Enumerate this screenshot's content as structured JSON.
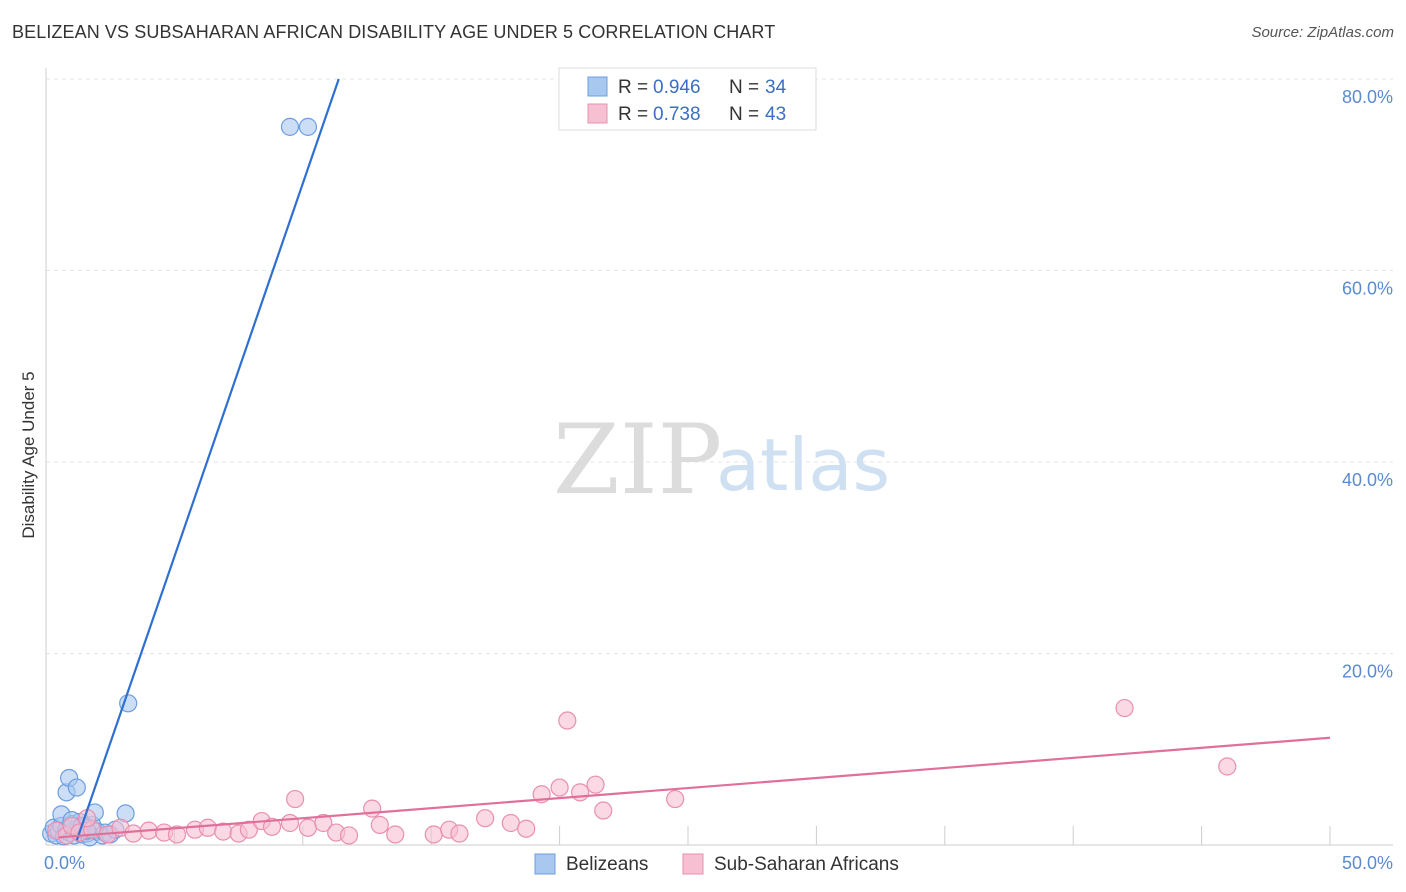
{
  "title": "BELIZEAN VS SUBSAHARAN AFRICAN DISABILITY AGE UNDER 5 CORRELATION CHART",
  "source": "Source: ZipAtlas.com",
  "watermark": {
    "zip": "ZIP",
    "atlas": "atlas"
  },
  "legend": {
    "r_label": "R =",
    "n_label": "N =",
    "rows": [
      {
        "r": "0.946",
        "n": "34",
        "color": "#a9c8f0",
        "stroke": "#6c9ee0"
      },
      {
        "r": "0.738",
        "n": "43",
        "color": "#f7bfd2",
        "stroke": "#e98fb0"
      }
    ]
  },
  "bottom_legend": [
    "Belizeans",
    "Sub-Saharan Africans"
  ],
  "chart_data": {
    "type": "scatter",
    "title": "BELIZEAN VS SUBSAHARAN AFRICAN DISABILITY AGE UNDER 5 CORRELATION CHART",
    "xlabel": "",
    "ylabel": "Disability Age Under 5",
    "xlim": [
      0,
      50
    ],
    "ylim": [
      0,
      80
    ],
    "x_tick_labels": [
      "0.0%",
      "50.0%"
    ],
    "y_ticks": [
      20,
      40,
      60,
      80
    ],
    "y_tick_labels": [
      "20.0%",
      "40.0%",
      "60.0%",
      "80.0%"
    ],
    "grid": true,
    "legend_position": "top-center",
    "series": [
      {
        "name": "Belizeans",
        "color": "#a9c8f0",
        "stroke": "#6c9ee0",
        "line_color": "#2f6fd0",
        "trend": {
          "x0": 1.2,
          "y0": 0.5,
          "x1": 11.4,
          "y1": 80.0
        },
        "points": [
          [
            0.2,
            1.2
          ],
          [
            0.3,
            1.8
          ],
          [
            0.4,
            1.0
          ],
          [
            0.5,
            1.5
          ],
          [
            0.6,
            2.0
          ],
          [
            0.7,
            0.9
          ],
          [
            0.8,
            1.6
          ],
          [
            0.9,
            1.3
          ],
          [
            1.0,
            2.2
          ],
          [
            1.1,
            1.0
          ],
          [
            1.2,
            1.7
          ],
          [
            1.3,
            2.4
          ],
          [
            1.4,
            1.1
          ],
          [
            1.5,
            1.9
          ],
          [
            1.6,
            1.2
          ],
          [
            1.7,
            0.8
          ],
          [
            1.8,
            2.1
          ],
          [
            2.0,
            1.4
          ],
          [
            2.2,
            1.0
          ],
          [
            0.6,
            3.2
          ],
          [
            0.8,
            5.5
          ],
          [
            0.9,
            7.0
          ],
          [
            1.0,
            2.6
          ],
          [
            1.2,
            6.0
          ],
          [
            1.4,
            2.0
          ],
          [
            1.6,
            1.5
          ],
          [
            1.9,
            3.4
          ],
          [
            2.3,
            1.3
          ],
          [
            2.5,
            1.1
          ],
          [
            2.7,
            1.6
          ],
          [
            3.1,
            3.3
          ],
          [
            3.2,
            14.8
          ],
          [
            9.5,
            75.0
          ],
          [
            10.2,
            75.0
          ]
        ]
      },
      {
        "name": "Sub-Saharan Africans",
        "color": "#f7bfd2",
        "stroke": "#e98fb0",
        "line_color": "#e0709a",
        "trend": {
          "x0": 0.5,
          "y0": 0.8,
          "x1": 50.0,
          "y1": 11.2
        },
        "points": [
          [
            0.4,
            1.5
          ],
          [
            0.8,
            1.0
          ],
          [
            1.0,
            2.0
          ],
          [
            1.3,
            1.3
          ],
          [
            1.8,
            1.6
          ],
          [
            2.4,
            1.1
          ],
          [
            2.9,
            1.8
          ],
          [
            3.4,
            1.2
          ],
          [
            4.0,
            1.5
          ],
          [
            4.6,
            1.3
          ],
          [
            5.1,
            1.1
          ],
          [
            5.8,
            1.6
          ],
          [
            6.3,
            1.8
          ],
          [
            6.9,
            1.4
          ],
          [
            7.5,
            1.2
          ],
          [
            7.9,
            1.6
          ],
          [
            8.4,
            2.5
          ],
          [
            8.8,
            1.9
          ],
          [
            9.5,
            2.3
          ],
          [
            9.7,
            4.8
          ],
          [
            10.2,
            1.8
          ],
          [
            10.8,
            2.3
          ],
          [
            11.3,
            1.3
          ],
          [
            11.8,
            1.0
          ],
          [
            12.7,
            3.8
          ],
          [
            13.0,
            2.1
          ],
          [
            13.6,
            1.1
          ],
          [
            15.1,
            1.1
          ],
          [
            15.7,
            1.6
          ],
          [
            16.1,
            1.2
          ],
          [
            17.1,
            2.8
          ],
          [
            18.1,
            2.3
          ],
          [
            18.7,
            1.7
          ],
          [
            19.3,
            5.3
          ],
          [
            20.0,
            6.0
          ],
          [
            20.3,
            13.0
          ],
          [
            20.8,
            5.5
          ],
          [
            21.4,
            6.3
          ],
          [
            21.7,
            3.6
          ],
          [
            24.5,
            4.8
          ],
          [
            42.0,
            14.3
          ],
          [
            46.0,
            8.2
          ],
          [
            1.6,
            2.8
          ]
        ]
      }
    ]
  }
}
